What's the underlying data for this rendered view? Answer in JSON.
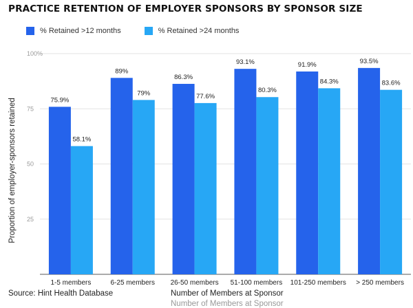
{
  "chart_data": {
    "type": "bar",
    "title": "PRACTICE RETENTION OF EMPLOYER SPONSORS BY SPONSOR SIZE",
    "xlabel": "Number of Members at Sponsor",
    "ylabel": "Proportion of employer-sponsors retained",
    "ylim": [
      0,
      100
    ],
    "yticks": [
      {
        "value": 25,
        "label": "25"
      },
      {
        "value": 50,
        "label": "50"
      },
      {
        "value": 75,
        "label": "75"
      },
      {
        "value": 100,
        "label": "100%"
      }
    ],
    "grid": true,
    "legend_position": "top-left",
    "categories": [
      "1-5 members",
      "6-25 members",
      "26-50 members",
      "51-100 members",
      "101-250 members",
      "> 250 members"
    ],
    "series": [
      {
        "name": "% Retained >12 months",
        "color": "#2563eb",
        "values": [
          75.9,
          89,
          86.3,
          93.1,
          91.9,
          93.5
        ],
        "labels": [
          "75.9%",
          "89%",
          "86.3%",
          "93.1%",
          "91.9%",
          "93.5%"
        ]
      },
      {
        "name": "% Retained >24 months",
        "color": "#27a7f5",
        "values": [
          58.1,
          79,
          77.6,
          80.3,
          84.3,
          83.6
        ],
        "labels": [
          "58.1%",
          "79%",
          "77.6%",
          "80.3%",
          "84.3%",
          "83.6%"
        ]
      }
    ]
  },
  "footer": {
    "source": "Source: Hint Health Database",
    "xlabel": "Number of Members at Sponsor"
  }
}
